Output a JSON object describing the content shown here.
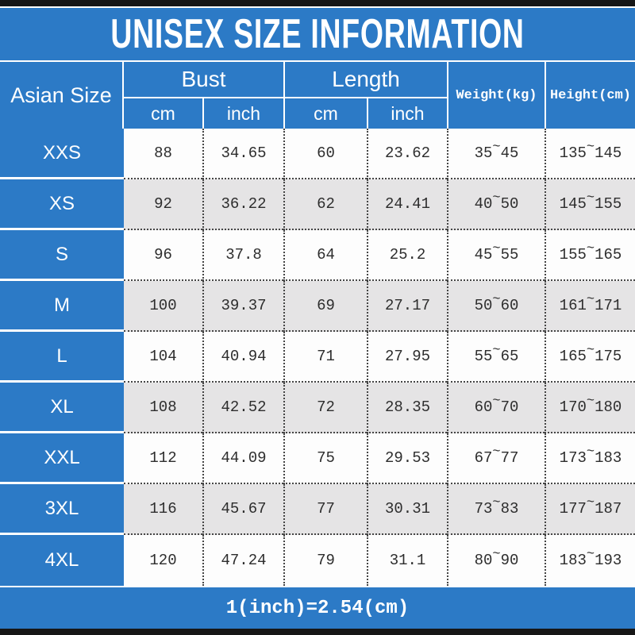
{
  "title": "UNISEX SIZE INFORMATION",
  "conversion_note": "1(inch)=2.54(cm)",
  "tilde": "~",
  "colors": {
    "header_blue": "#2c7ac6",
    "row_alt_gray": "#e5e4e5",
    "row_white": "#fdfdfd",
    "frame_black": "#161616",
    "data_text": "#2d2d2d",
    "header_text": "#ffffff"
  },
  "chart_data": {
    "type": "table",
    "title": "UNISEX SIZE INFORMATION",
    "corner_header": "Asian Size",
    "column_groups": [
      {
        "label": "Bust",
        "sub": [
          "cm",
          "inch"
        ]
      },
      {
        "label": "Length",
        "sub": [
          "cm",
          "inch"
        ]
      }
    ],
    "scalar_columns": [
      "Weight(kg)",
      "Height(cm)"
    ],
    "footnote": "1(inch)=2.54(cm)",
    "rows": [
      {
        "size": "XXS",
        "bust_cm": "88",
        "bust_inch": "34.65",
        "length_cm": "60",
        "length_inch": "23.62",
        "weight": [
          "35",
          "45"
        ],
        "height": [
          "135",
          "145"
        ]
      },
      {
        "size": "XS",
        "bust_cm": "92",
        "bust_inch": "36.22",
        "length_cm": "62",
        "length_inch": "24.41",
        "weight": [
          "40",
          "50"
        ],
        "height": [
          "145",
          "155"
        ]
      },
      {
        "size": "S",
        "bust_cm": "96",
        "bust_inch": "37.8",
        "length_cm": "64",
        "length_inch": "25.2",
        "weight": [
          "45",
          "55"
        ],
        "height": [
          "155",
          "165"
        ]
      },
      {
        "size": "M",
        "bust_cm": "100",
        "bust_inch": "39.37",
        "length_cm": "69",
        "length_inch": "27.17",
        "weight": [
          "50",
          "60"
        ],
        "height": [
          "161",
          "171"
        ]
      },
      {
        "size": "L",
        "bust_cm": "104",
        "bust_inch": "40.94",
        "length_cm": "71",
        "length_inch": "27.95",
        "weight": [
          "55",
          "65"
        ],
        "height": [
          "165",
          "175"
        ]
      },
      {
        "size": "XL",
        "bust_cm": "108",
        "bust_inch": "42.52",
        "length_cm": "72",
        "length_inch": "28.35",
        "weight": [
          "60",
          "70"
        ],
        "height": [
          "170",
          "180"
        ]
      },
      {
        "size": "XXL",
        "bust_cm": "112",
        "bust_inch": "44.09",
        "length_cm": "75",
        "length_inch": "29.53",
        "weight": [
          "67",
          "77"
        ],
        "height": [
          "173",
          "183"
        ]
      },
      {
        "size": "3XL",
        "bust_cm": "116",
        "bust_inch": "45.67",
        "length_cm": "77",
        "length_inch": "30.31",
        "weight": [
          "73",
          "83"
        ],
        "height": [
          "177",
          "187"
        ]
      },
      {
        "size": "4XL",
        "bust_cm": "120",
        "bust_inch": "47.24",
        "length_cm": "79",
        "length_inch": "31.1",
        "weight": [
          "80",
          "90"
        ],
        "height": [
          "183",
          "193"
        ]
      }
    ]
  }
}
